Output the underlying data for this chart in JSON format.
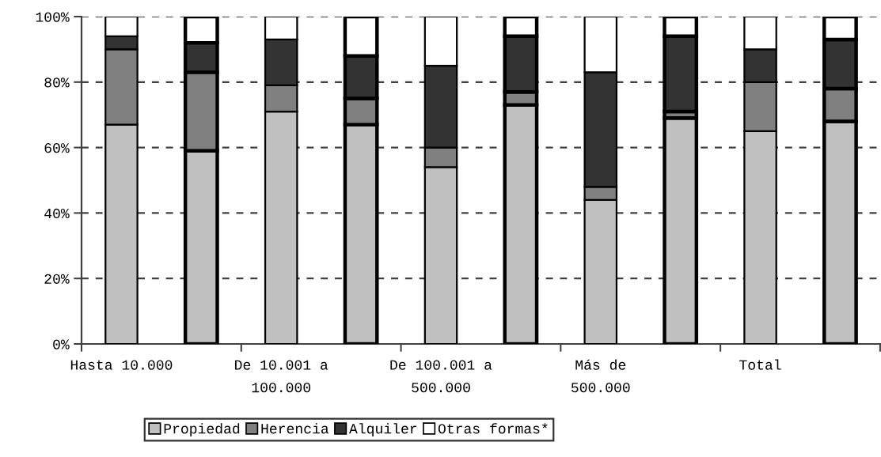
{
  "chart_data": {
    "type": "bar",
    "stacked": true,
    "categories": [
      "Hasta 10.000",
      null,
      "De 10.001 a\n100.000",
      null,
      "De 100.001 a\n500.000",
      null,
      "Más de\n500.000",
      null,
      "Total",
      null
    ],
    "series": [
      {
        "name": "Propiedad",
        "color": "#c0c0c0",
        "values": [
          67,
          59,
          71,
          67,
          54,
          73,
          44,
          69,
          65,
          68
        ]
      },
      {
        "name": "Herencia",
        "color": "#808080",
        "values": [
          23,
          24,
          8,
          8,
          6,
          4,
          4,
          2,
          15,
          10
        ]
      },
      {
        "name": "Alquiler",
        "color": "#333333",
        "values": [
          4,
          9,
          14,
          13,
          25,
          17,
          35,
          23,
          10,
          15
        ]
      },
      {
        "name": "Otras formas*",
        "color": "#ffffff",
        "values": [
          6,
          8,
          7,
          12,
          15,
          6,
          17,
          6,
          10,
          7
        ]
      }
    ],
    "ylim": [
      0,
      100
    ],
    "yticks": [
      {
        "value": 0,
        "label": "0%"
      },
      {
        "value": 20,
        "label": "20%"
      },
      {
        "value": 40,
        "label": "40%"
      },
      {
        "value": 60,
        "label": "60%"
      },
      {
        "value": 80,
        "label": "80%"
      },
      {
        "value": 100,
        "label": "100%"
      }
    ],
    "grid": "y",
    "legend": "bottom"
  }
}
